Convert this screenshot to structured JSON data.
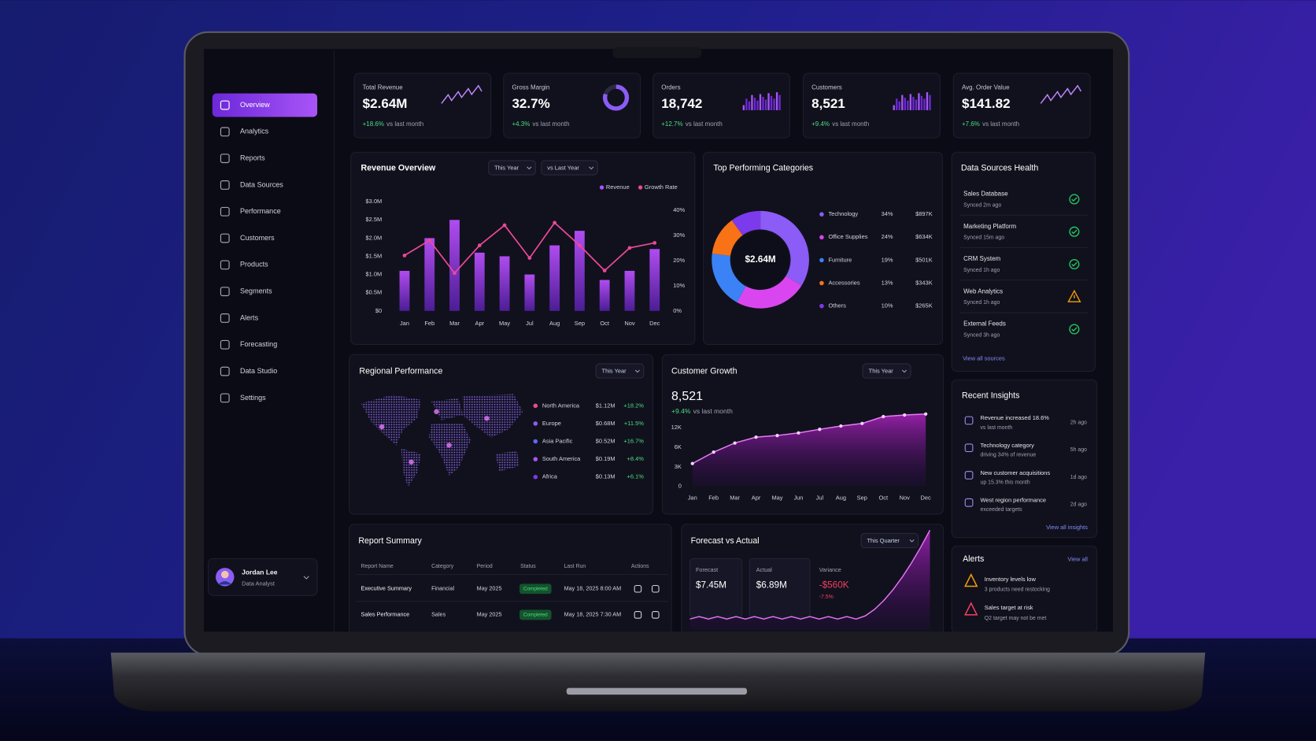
{
  "sidebar": {
    "nav": [
      {
        "label": "Overview",
        "active": true
      },
      {
        "label": "Analytics"
      },
      {
        "label": "Reports"
      },
      {
        "label": "Data Sources"
      },
      {
        "label": "Performance"
      },
      {
        "label": "Customers"
      },
      {
        "label": "Products"
      },
      {
        "label": "Segments"
      },
      {
        "label": "Alerts"
      },
      {
        "label": "Forecasting"
      },
      {
        "label": "Data Studio"
      },
      {
        "label": "Settings"
      }
    ],
    "user": {
      "name": "Jordan Lee",
      "role": "Data Analyst"
    }
  },
  "kpis": [
    {
      "label": "Total Revenue",
      "value": "$2.64M",
      "change": "+18.6%",
      "note": "vs last month"
    },
    {
      "label": "Gross Margin",
      "value": "32.7%",
      "change": "+4.3%",
      "note": "vs last month"
    },
    {
      "label": "Orders",
      "value": "18,742",
      "change": "+12.7%",
      "note": "vs last month"
    },
    {
      "label": "Customers",
      "value": "8,521",
      "change": "+9.4%",
      "note": "vs last month"
    },
    {
      "label": "Avg. Order Value",
      "value": "$141.82",
      "change": "+7.6%",
      "note": "vs last month"
    }
  ],
  "revenue_overview": {
    "title": "Revenue Overview",
    "filters": [
      "This Year",
      "vs Last Year"
    ],
    "categories": [
      "Jan",
      "Feb",
      "Mar",
      "Apr",
      "May",
      "Jul",
      "Aug",
      "Sep",
      "Oct",
      "Nov",
      "Dec"
    ],
    "ylim": [
      0,
      3000000
    ],
    "yticks": [
      {
        "value": 0,
        "label": "$0"
      },
      {
        "value": 500000,
        "label": "$0.5M"
      },
      {
        "value": 1000000,
        "label": "$1.0M"
      },
      {
        "value": 1500000,
        "label": "$1.5M"
      },
      {
        "value": 2000000,
        "label": "$2.0M"
      },
      {
        "value": 2500000,
        "label": "$2.5M"
      },
      {
        "value": 3000000,
        "label": "$3.0M"
      }
    ],
    "y2lim": [
      0,
      40
    ],
    "y2ticks": [
      {
        "value": 0,
        "label": "0%"
      },
      {
        "value": 10,
        "label": "10%"
      },
      {
        "value": 20,
        "label": "20%"
      },
      {
        "value": 30,
        "label": "30%"
      },
      {
        "value": 40,
        "label": "40%"
      }
    ],
    "series": [
      {
        "name": "Revenue",
        "color": "#a855f7",
        "values": [
          1100000,
          2000000,
          2500000,
          1600000,
          1500000,
          1000000,
          1800000,
          2200000,
          850000,
          1100000,
          1700000
        ]
      },
      {
        "name": "Growth Rate",
        "color": "#ec4899",
        "axis": "y2",
        "values": [
          22,
          28,
          15,
          26,
          34,
          21,
          35,
          26,
          16,
          25,
          27
        ]
      }
    ]
  },
  "top_categories": {
    "title": "Top Performing Categories",
    "center_label": "$2.64M",
    "items": [
      {
        "name": "Technology",
        "share": 34,
        "share_label": "34%",
        "amount": "$897K",
        "color": "#8b5cf6"
      },
      {
        "name": "Office Supplies",
        "share": 24,
        "share_label": "24%",
        "amount": "$634K",
        "color": "#d946ef"
      },
      {
        "name": "Furniture",
        "share": 19,
        "share_label": "19%",
        "amount": "$501K",
        "color": "#3b82f6"
      },
      {
        "name": "Accessories",
        "share": 13,
        "share_label": "13%",
        "amount": "$343K",
        "color": "#f97316"
      },
      {
        "name": "Others",
        "share": 10,
        "share_label": "10%",
        "amount": "$265K",
        "color": "#7c3aed"
      }
    ]
  },
  "data_sources": {
    "title": "Data Sources Health",
    "items": [
      {
        "name": "Sales Database",
        "synced": "Synced 2m ago",
        "status": "ok"
      },
      {
        "name": "Marketing Platform",
        "synced": "Synced 15m ago",
        "status": "ok"
      },
      {
        "name": "CRM System",
        "synced": "Synced 1h ago",
        "status": "ok"
      },
      {
        "name": "Web Analytics",
        "synced": "Synced 1h ago",
        "status": "warning"
      },
      {
        "name": "External Feeds",
        "synced": "Synced 3h ago",
        "status": "ok"
      }
    ],
    "link": "View all sources"
  },
  "regional": {
    "title": "Regional Performance",
    "filter": "This Year",
    "regions": [
      {
        "name": "North America",
        "amount": "$1.12M",
        "change": "+18.2%",
        "color": "#ec4899"
      },
      {
        "name": "Europe",
        "amount": "$0.68M",
        "change": "+11.5%",
        "color": "#8b5cf6"
      },
      {
        "name": "Asia Pacific",
        "amount": "$0.52M",
        "change": "+16.7%",
        "color": "#6366f1"
      },
      {
        "name": "South America",
        "amount": "$0.19M",
        "change": "+8.4%",
        "color": "#a855f7"
      },
      {
        "name": "Africa",
        "amount": "$0.13M",
        "change": "+6.1%",
        "color": "#7c3aed"
      }
    ]
  },
  "customer_growth": {
    "title": "Customer Growth",
    "filter": "This Year",
    "value": "8,521",
    "change": "+9.4%",
    "note": "vs last month",
    "categories": [
      "Jan",
      "Feb",
      "Mar",
      "Apr",
      "May",
      "Jun",
      "Jul",
      "Aug",
      "Sep",
      "Oct",
      "Nov",
      "Dec"
    ],
    "yticks": [
      0,
      {
        "value": 3000,
        "label": "3K"
      },
      {
        "value": 6000,
        "label": "6K"
      },
      {
        "value": 12000,
        "label": "12K"
      }
    ],
    "values": [
      3500,
      5250,
      7300,
      9100,
      9600,
      10400,
      11500,
      12500,
      13300,
      15400,
      15900,
      16200
    ]
  },
  "insights": {
    "title": "Recent Insights",
    "items": [
      {
        "text": "Revenue increased 18.6%",
        "sub": "vs last month",
        "time": "2h ago"
      },
      {
        "text": "Technology category",
        "sub": "driving 34% of revenue",
        "time": "5h ago"
      },
      {
        "text": "New customer acquisitions",
        "sub": "up 15.3% this month",
        "time": "1d ago"
      },
      {
        "text": "West region performance",
        "sub": "exceeded targets",
        "time": "2d ago"
      }
    ],
    "link": "View all insights"
  },
  "report_summary": {
    "title": "Report Summary",
    "headers": [
      "Report Name",
      "Category",
      "Period",
      "Status",
      "Last Run",
      "Actions"
    ],
    "rows": [
      [
        "Executive Summary",
        "Financial",
        "May 2025",
        "Completed",
        "May 18, 2025 8:00 AM"
      ],
      [
        "Sales Performance",
        "Sales",
        "May 2025",
        "Completed",
        "May 18, 2025 7:30 AM"
      ]
    ]
  },
  "forecast": {
    "title": "Forecast vs Actual",
    "filter": "This Quarter",
    "forecast_label": "Forecast",
    "forecast_value": "$7.45M",
    "actual_label": "Actual",
    "actual_value": "$6.89M",
    "variance_label": "Variance",
    "variance_value": "-$560K",
    "variance_pct": "-7.5%"
  },
  "alerts": {
    "title": "Alerts",
    "link": "View all",
    "items": [
      {
        "title": "Inventory levels low",
        "sub": "3 products need restocking",
        "level": "warning"
      },
      {
        "title": "Sales target at risk",
        "sub": "Q2 target may not be met",
        "level": "critical"
      }
    ]
  }
}
